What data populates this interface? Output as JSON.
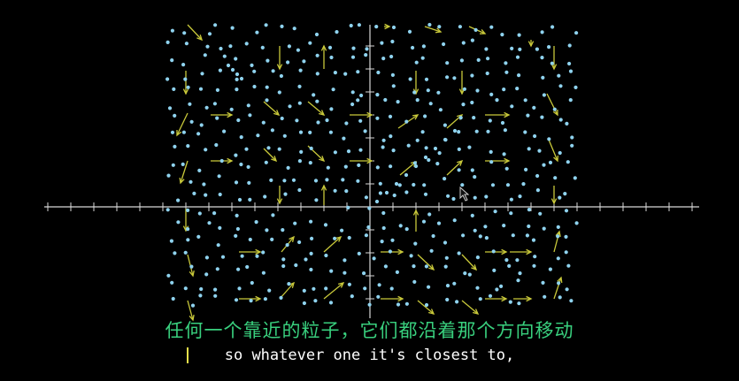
{
  "video": {
    "subtitle_cn": "任何一个靠近的粒子，它们都沿着那个方向移动",
    "subtitle_en": "so whatever one it's closest to,"
  },
  "colors": {
    "background": "#000000",
    "axis": "#d8d8d8",
    "arrow": "#c9c93a",
    "particle": "#8fd3ef",
    "subtitle_cn": "#39d07e",
    "subtitle_en": "#ffffff"
  },
  "icons": {
    "pointer": "mouse-cursor-icon"
  }
}
